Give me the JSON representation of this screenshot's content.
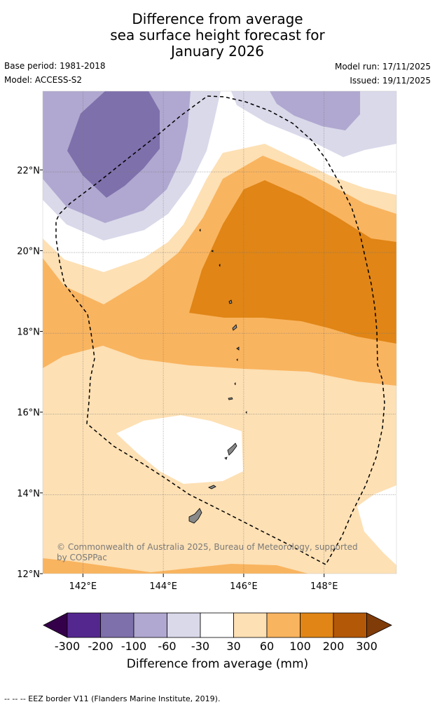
{
  "title": {
    "line1": "Difference from average",
    "line2": "sea surface height forecast for",
    "line3": "January 2026"
  },
  "meta": {
    "base_period": "Base period: 1981-2018",
    "model": "Model: ACCESS-S2",
    "model_run": "Model run: 17/11/2025",
    "issued": "Issued: 19/11/2025"
  },
  "map": {
    "lon_range": [
      141,
      149.8
    ],
    "lat_range": [
      12,
      23.95
    ],
    "lon_ticks": [
      142,
      144,
      146,
      148
    ],
    "lon_tick_labels": [
      "142°E",
      "144°E",
      "146°E",
      "148°E"
    ],
    "lat_ticks": [
      12,
      14,
      16,
      18,
      20,
      22
    ],
    "lat_tick_labels": [
      "12°N",
      "14°N",
      "16°N",
      "18°N",
      "20°N",
      "22°N"
    ],
    "copyright": "© Commonwealth of Australia 2025, Bureau of Meteorology, supported by COSPPac",
    "colors": {
      "c_m300": "#35004a",
      "c_m200": "#54278f",
      "c_m100": "#7e70ab",
      "c_m60": "#b0a8d0",
      "c_m30": "#d9d9ea",
      "c_zero": "#ffffff",
      "c_30": "#fde0b4",
      "c_60": "#f9b45f",
      "c_100": "#e08516",
      "c_200": "#b35807",
      "c_300": "#7f3b08"
    }
  },
  "colorbar": {
    "ticks": [
      "-300",
      "-200",
      "-100",
      "-60",
      "-30",
      "30",
      "60",
      "100",
      "200",
      "300"
    ],
    "label": "Difference from average (mm)"
  },
  "footer": "--  --  -- EEZ border V11 (Flanders Marine Institute, 2019)."
}
